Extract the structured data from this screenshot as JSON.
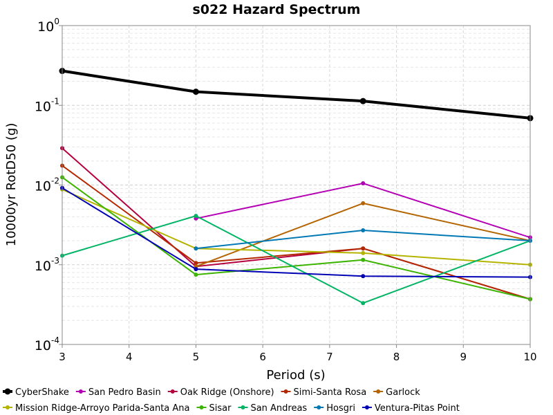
{
  "chart_data": {
    "type": "line",
    "title": "s022 Hazard Spectrum",
    "xlabel": "Period (s)",
    "ylabel": "10000yr RotD50 (g)",
    "xlim": [
      3,
      10
    ],
    "ylim": [
      0.0001,
      1
    ],
    "yscale": "log",
    "grid": true,
    "legend_position": "bottom",
    "x_ticks": [
      "3",
      "4",
      "5",
      "6",
      "7",
      "8",
      "9",
      "10"
    ],
    "y_ticks": [
      {
        "base": "10",
        "exp": "0",
        "value": 1
      },
      {
        "base": "10",
        "exp": "-1",
        "value": 0.1
      },
      {
        "base": "10",
        "exp": "-2",
        "value": 0.01
      },
      {
        "base": "10",
        "exp": "-3",
        "value": 0.001
      },
      {
        "base": "10",
        "exp": "-4",
        "value": 0.0001
      }
    ],
    "series": [
      {
        "name": "CyberShake",
        "color": "#000000",
        "x": [
          3,
          5,
          7.5,
          10
        ],
        "y": [
          0.27,
          0.148,
          0.113,
          0.069
        ]
      },
      {
        "name": "San Pedro Basin",
        "color": "#b400b4",
        "x": [
          5,
          7.5,
          10
        ],
        "y": [
          0.0038,
          0.0105,
          0.0022
        ]
      },
      {
        "name": "Oak Ridge (Onshore)",
        "color": "#b4003c",
        "x": [
          3,
          5,
          7.5,
          10
        ],
        "y": [
          0.029,
          0.00095,
          0.0016,
          0.00037
        ]
      },
      {
        "name": "Simi-Santa Rosa",
        "color": "#b42800",
        "x": [
          3,
          5,
          7.5,
          10
        ],
        "y": [
          0.0175,
          0.00105,
          0.0016,
          0.00037
        ]
      },
      {
        "name": "Garlock",
        "color": "#b46400",
        "x": [
          5,
          7.5,
          10
        ],
        "y": [
          0.00095,
          0.0059,
          0.002
        ]
      },
      {
        "name": "Mission Ridge-Arroyo Parida-Santa Ana",
        "color": "#b4b400",
        "x": [
          3,
          5,
          7.5,
          10
        ],
        "y": [
          0.0088,
          0.0016,
          0.0014,
          0.001
        ]
      },
      {
        "name": "Sisar",
        "color": "#3cb400",
        "x": [
          3,
          5,
          7.5,
          10
        ],
        "y": [
          0.0125,
          0.00075,
          0.00115,
          0.00037
        ]
      },
      {
        "name": "San Andreas",
        "color": "#00b464",
        "x": [
          3,
          5,
          7.5,
          10
        ],
        "y": [
          0.0013,
          0.0041,
          0.00033,
          0.002
        ]
      },
      {
        "name": "Hosgri",
        "color": "#0078b4",
        "x": [
          5,
          7.5,
          10
        ],
        "y": [
          0.0016,
          0.0027,
          0.002
        ]
      },
      {
        "name": "Ventura-Pitas Point",
        "color": "#0000b4",
        "x": [
          3,
          5,
          7.5,
          10
        ],
        "y": [
          0.0092,
          0.00088,
          0.00072,
          0.0007
        ]
      }
    ]
  }
}
